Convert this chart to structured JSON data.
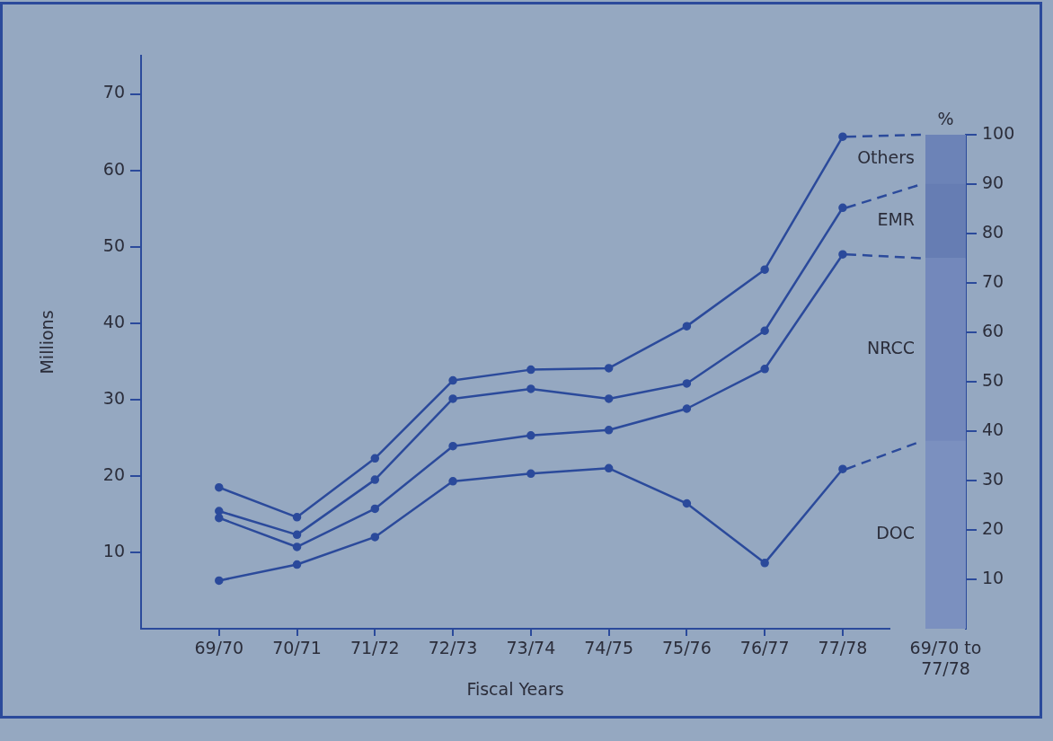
{
  "chart_data": [
    {
      "type": "line",
      "xlabel": "Fiscal Years",
      "ylabel": "Millions",
      "categories": [
        "69/70",
        "70/71",
        "71/72",
        "72/73",
        "73/74",
        "74/75",
        "75/76",
        "76/77",
        "77/78"
      ],
      "series": [
        {
          "color": "#2b4a9b",
          "values": [
            6.3,
            8.4,
            12.0,
            19.3,
            20.3,
            21.0,
            16.4,
            8.6,
            20.9
          ]
        },
        {
          "color": "#2b4a9b",
          "values": [
            14.5,
            10.7,
            15.7,
            23.9,
            25.3,
            26.0,
            28.8,
            34.0,
            49.0
          ]
        },
        {
          "color": "#2b4a9b",
          "values": [
            15.4,
            12.3,
            19.5,
            30.1,
            31.4,
            30.1,
            32.1,
            39.0,
            55.1
          ]
        },
        {
          "color": "#2b4a9b",
          "values": [
            18.5,
            14.6,
            22.3,
            32.5,
            33.9,
            34.1,
            39.6,
            47.0,
            64.4
          ]
        }
      ],
      "ylim": [
        0,
        75
      ],
      "yticks": [
        10,
        20,
        30,
        40,
        50,
        60,
        70
      ],
      "marker": "circle",
      "grid": false,
      "legend": false
    },
    {
      "type": "bar",
      "stacked": true,
      "ylabel": "%",
      "categories": [
        "69/70 to 77/78"
      ],
      "series": [
        {
          "name": "DOC",
          "color": "#7b90bf",
          "values": [
            38
          ]
        },
        {
          "name": "NRCC",
          "color": "#7388bb",
          "values": [
            37
          ]
        },
        {
          "name": "EMR",
          "color": "#667db3",
          "values": [
            15
          ]
        },
        {
          "name": "Others",
          "color": "#6c83b7",
          "values": [
            10
          ]
        }
      ],
      "ylim": [
        0,
        100
      ],
      "yticks": [
        10,
        20,
        30,
        40,
        50,
        60,
        70,
        80,
        90,
        100
      ],
      "grid": false,
      "legend": false
    }
  ]
}
